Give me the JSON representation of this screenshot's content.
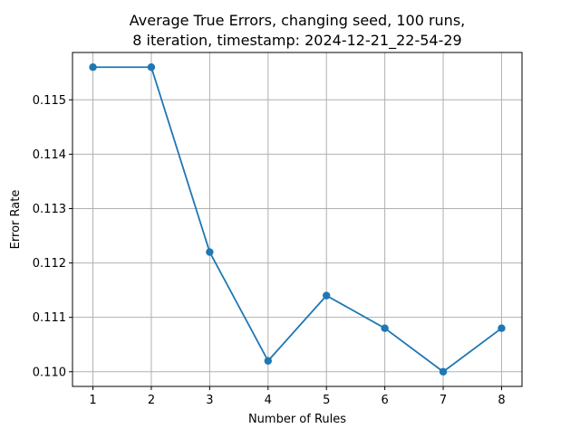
{
  "chart_data": {
    "type": "line",
    "title_line1": "Average True Errors, changing seed, 100 runs,",
    "title_line2": "8 iteration, timestamp: 2024-12-21_22-54-29",
    "xlabel": "Number of Rules",
    "ylabel": "Error Rate",
    "x": [
      1,
      2,
      3,
      4,
      5,
      6,
      7,
      8
    ],
    "values": [
      0.1156,
      0.1156,
      0.1122,
      0.1102,
      0.1114,
      0.1108,
      0.11,
      0.1108
    ],
    "xticks": [
      "1",
      "2",
      "3",
      "4",
      "5",
      "6",
      "7",
      "8"
    ],
    "yticks": [
      "0.110",
      "0.111",
      "0.112",
      "0.113",
      "0.114",
      "0.115"
    ],
    "xlim": [
      0.65,
      8.35
    ],
    "ylim": [
      0.10973,
      0.11587
    ],
    "grid": true,
    "line_color": "#1f77b4",
    "grid_color": "#b0b0b0"
  }
}
